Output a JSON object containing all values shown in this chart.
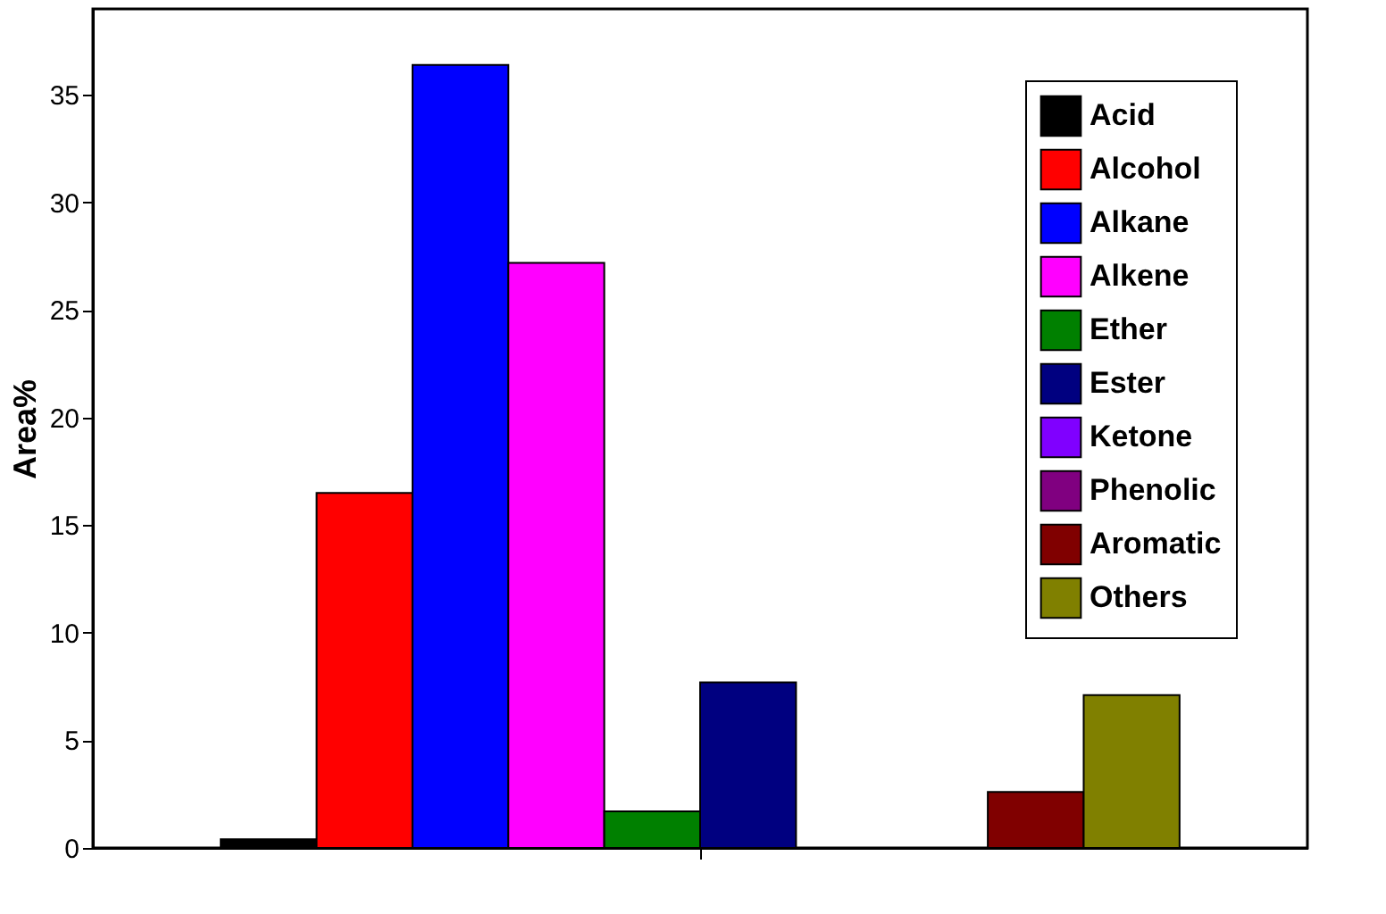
{
  "chart_data": {
    "type": "bar",
    "ylabel": "Area%",
    "categories": [
      null
    ],
    "series": [
      {
        "name": "Acid",
        "color": "#000000",
        "values": [
          0.4
        ]
      },
      {
        "name": "Alcohol",
        "color": "#ff0000",
        "values": [
          16.5
        ]
      },
      {
        "name": "Alkane",
        "color": "#0000ff",
        "values": [
          36.4
        ]
      },
      {
        "name": "Alkene",
        "color": "#ff00ff",
        "values": [
          27.2
        ]
      },
      {
        "name": "Ether",
        "color": "#008000",
        "values": [
          1.7
        ]
      },
      {
        "name": "Ester",
        "color": "#000080",
        "values": [
          7.7
        ]
      },
      {
        "name": "Ketone",
        "color": "#8000ff",
        "values": [
          null
        ]
      },
      {
        "name": "Phenolic",
        "color": "#800080",
        "values": [
          null
        ]
      },
      {
        "name": "Aromatic",
        "color": "#800000",
        "values": [
          2.6
        ]
      },
      {
        "name": "Others",
        "color": "#808000",
        "values": [
          7.1
        ]
      }
    ],
    "ylim": [
      0,
      39
    ],
    "yticks": [
      0,
      5,
      10,
      15,
      20,
      25,
      30,
      35
    ],
    "grid": false,
    "legend": "top right",
    "tick_labels": "y"
  }
}
